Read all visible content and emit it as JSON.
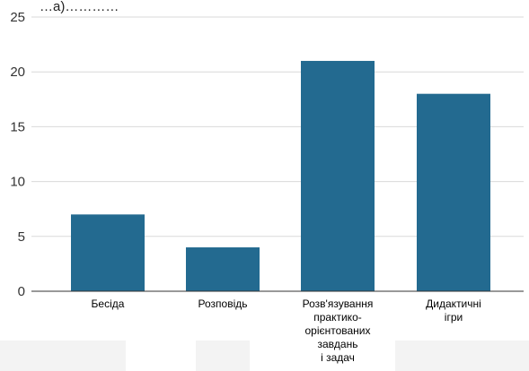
{
  "header_text": "…а)…………",
  "chart_data": {
    "type": "bar",
    "title": "",
    "xlabel": "",
    "ylabel": "",
    "categories": [
      [
        "Бесіда"
      ],
      [
        "Розповідь"
      ],
      [
        "Розв'язування",
        "практико-",
        "орієнтованих",
        "завдань",
        "і задач"
      ],
      [
        "Дидактичні",
        "ігри"
      ]
    ],
    "values": [
      7,
      4,
      21,
      18
    ],
    "ylim": [
      0,
      25
    ],
    "yticks": [
      0,
      5,
      10,
      15,
      20,
      25
    ],
    "bar_color": "#236a90",
    "grid": true,
    "legend": "none"
  }
}
